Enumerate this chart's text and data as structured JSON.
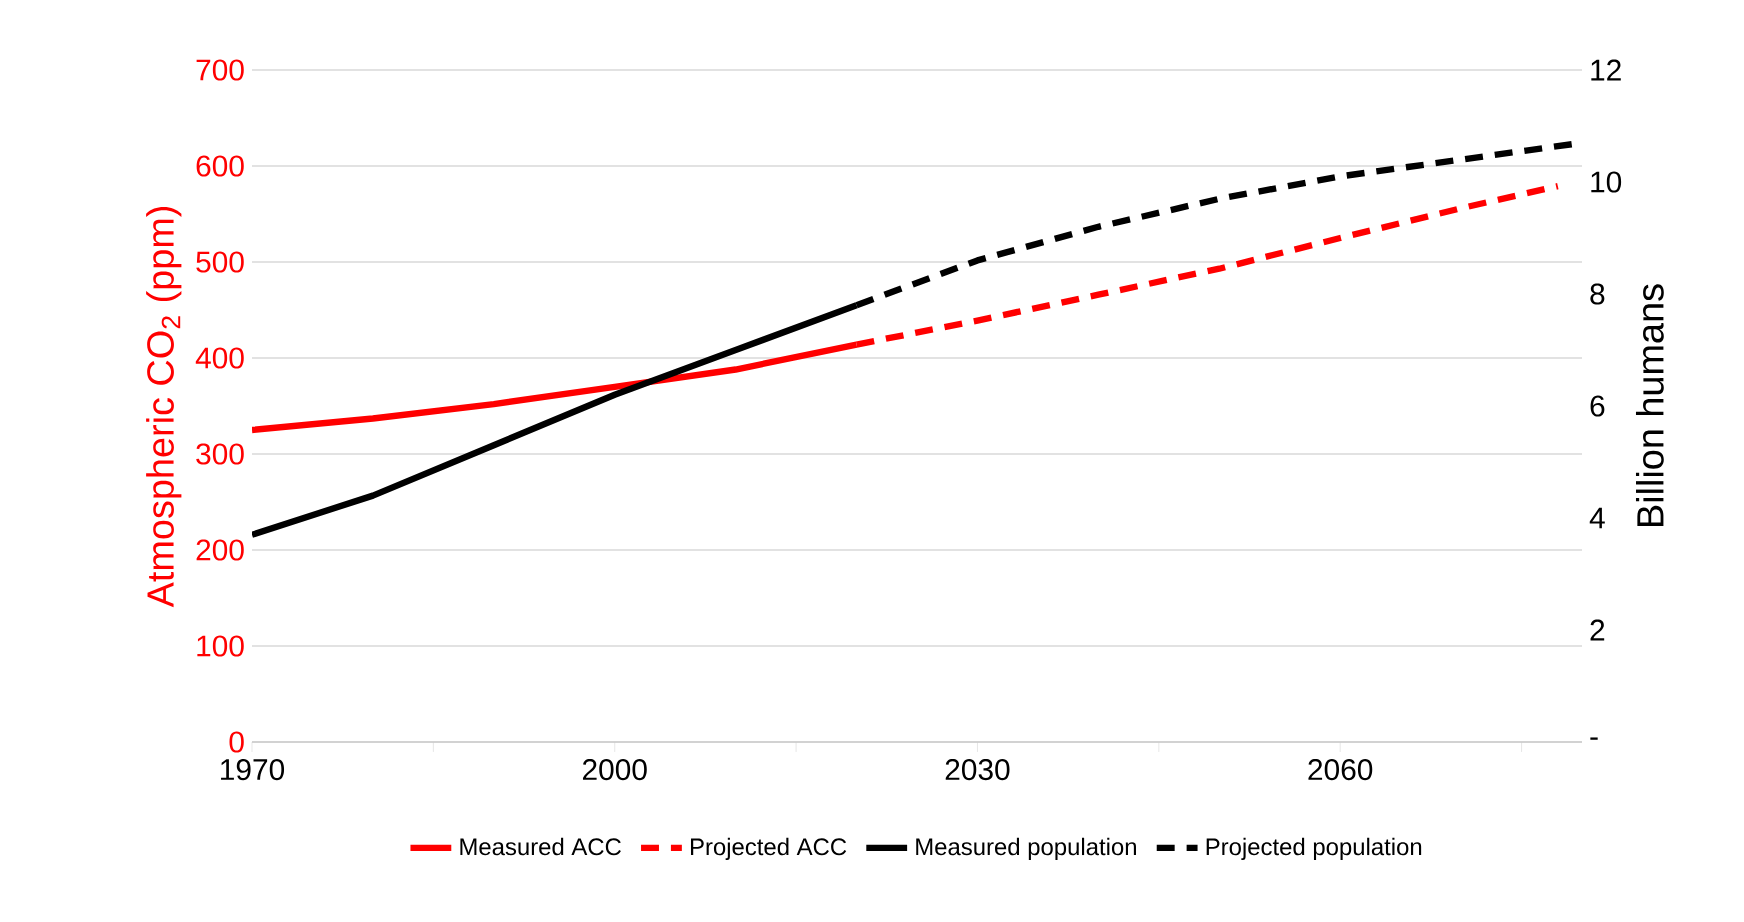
{
  "chart_data": {
    "type": "line",
    "xlabel": null,
    "ylabel": "Atmospheric CO$_{2}$ (ppm)",
    "y2label": "Billion humans",
    "series": [
      {
        "name": "Measured ACC",
        "color": "#ff0000",
        "line_style": "solid",
        "x": [
          1970,
          1980,
          1990,
          2000,
          2010,
          2020
        ],
        "values": [
          325,
          337,
          352,
          370,
          388,
          414
        ]
      },
      {
        "name": "Projected ACC",
        "color": "#ff0000",
        "line_style": "dashed",
        "x": [
          2020,
          2030,
          2040,
          2050,
          2060,
          2070,
          2078
        ],
        "values": [
          414,
          439,
          466,
          493,
          525,
          556,
          579
        ]
      },
      {
        "name": "Measured population",
        "color": "#000000",
        "line_style": "solid",
        "axis": "y2",
        "x": [
          1970,
          1980,
          1990,
          2000,
          2010,
          2020
        ],
        "values": [
          3.7,
          4.4,
          5.3,
          6.2,
          7.0,
          7.8
        ]
      },
      {
        "name": "Projected population",
        "color": "#000000",
        "line_style": "dashed",
        "axis": "y2",
        "x": [
          2020,
          2030,
          2040,
          2050,
          2060,
          2070,
          2080
        ],
        "values": [
          7.8,
          8.6,
          9.2,
          9.7,
          10.1,
          10.4,
          10.7
        ]
      }
    ],
    "xlim": [
      1970,
      2080
    ],
    "xticks": [
      1970,
      {
        "value": 1985,
        "label": null
      },
      2000,
      {
        "value": 2015,
        "label": null
      },
      2030,
      {
        "value": 2045,
        "label": null
      },
      2060,
      {
        "value": 2075,
        "label": null
      }
    ],
    "ylim": [
      0,
      700
    ],
    "yticks": [
      0,
      100,
      200,
      300,
      400,
      500,
      600,
      700
    ],
    "y2lim": [
      0,
      12
    ],
    "y2ticks": [
      {
        "value": 0,
        "label": "-"
      },
      2,
      4,
      6,
      8,
      10,
      12
    ],
    "grid": "y",
    "legend": "bottom",
    "marker": "none"
  }
}
